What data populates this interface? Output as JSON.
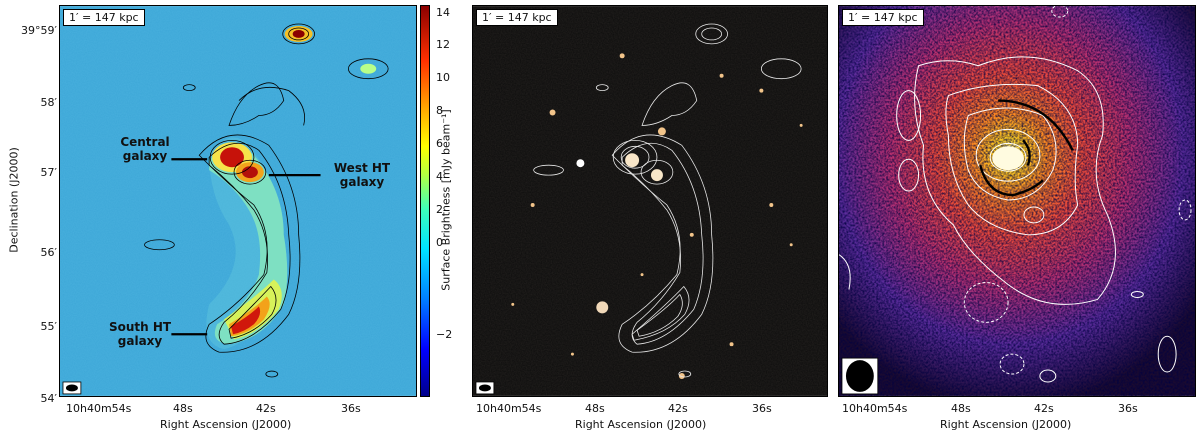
{
  "scale_label": "1′ = 147 kpc",
  "y_axis": {
    "title": "Declination (J2000)",
    "ticks": [
      "39°59′",
      "58′",
      "57′",
      "56′",
      "55′",
      "54′"
    ]
  },
  "x_axis": {
    "title": "Right Ascension (J2000)",
    "ticks": [
      "10h40m54s",
      "48s",
      "42s",
      "36s"
    ]
  },
  "colorbar": {
    "title": "Surface Brightness [mJy beam⁻¹]",
    "ticks": [
      "14",
      "12",
      "10",
      "8",
      "6",
      "4",
      "2",
      "0",
      "−2"
    ],
    "colors": [
      "#00008b",
      "#0000ff",
      "#00e5ff",
      "#ffff00",
      "#ff3000",
      "#8b0000"
    ]
  },
  "annotations": {
    "central": "Central galaxy",
    "west": "West HT galaxy",
    "south": "South HT galaxy"
  },
  "panels": [
    {
      "name": "radio-map",
      "background": "#3ca6d6"
    },
    {
      "name": "optical-image",
      "background": "#0b0b0b"
    },
    {
      "name": "xray-image",
      "background": "#4a1f8c"
    }
  ]
}
